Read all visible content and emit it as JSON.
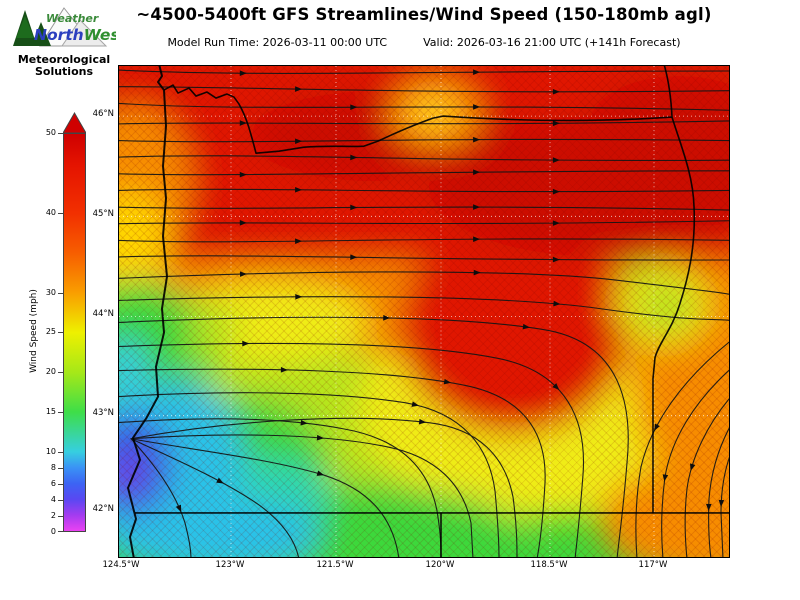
{
  "header": {
    "title": "~4500-5400ft GFS Streamlines/Wind Speed (150-180mb agl)",
    "model_run": "Model Run Time: 2026-03-11 00:00 UTC",
    "valid": "Valid: 2026-03-16 21:00 UTC  (+141h Forecast)",
    "logo": {
      "weather": "Weather",
      "north": "North",
      "west": "West",
      "tagline1": "Meteorological",
      "tagline2": "Solutions"
    }
  },
  "colorbar": {
    "label": "Wind Speed (mph)",
    "ticks": [
      "50",
      "40",
      "30",
      "25",
      "20",
      "15",
      "10",
      "8",
      "6",
      "4",
      "2",
      "0"
    ],
    "min": 0,
    "max": 50,
    "over_color": "#cf0000",
    "under_color": "#ea42f2"
  },
  "map": {
    "lat_labels": [
      "46°N",
      "45°N",
      "44°N",
      "43°N",
      "42°N"
    ],
    "lon_labels": [
      "124.5°W",
      "123°W",
      "121.5°W",
      "120°W",
      "118.5°W",
      "117°W"
    ],
    "region": "Oregon and surrounding states",
    "boundaries": [
      "Pacific coastline",
      "Columbia River / Washington border",
      "Snake River / Idaho border",
      "42N California-Nevada border",
      "120W California-Nevada line"
    ]
  },
  "chart_data": {
    "type": "heatmap",
    "title": "~4500-5400ft GFS Streamlines/Wind Speed (150-180mb agl)",
    "model_run_time": "2026-03-11 00:00 UTC",
    "valid_time": "2026-03-16 21:00 UTC",
    "forecast_hour": "+141h",
    "colorbar_label": "Wind Speed (mph)",
    "colorbar_ticks": [
      0,
      2,
      4,
      6,
      8,
      10,
      15,
      20,
      25,
      30,
      40,
      50
    ],
    "colorbar_range": [
      0,
      50
    ],
    "x_ticks": [
      "124.5°W",
      "123°W",
      "121.5°W",
      "120°W",
      "118.5°W",
      "117°W"
    ],
    "y_ticks": [
      "46°N",
      "45°N",
      "44°N",
      "43°N",
      "42°N"
    ],
    "lon_range_deg_w": [
      124.55,
      115.95
    ],
    "lat_range_deg_n": [
      41.55,
      46.5
    ],
    "grid_lons_deg_w": [
      124.5,
      123.5,
      122.5,
      121.5,
      120.5,
      119.5,
      118.5,
      117.5,
      116.5
    ],
    "grid_lats_deg_n": [
      46,
      45,
      44,
      43,
      42
    ],
    "wind_speed_mph": [
      [
        38,
        47,
        50,
        45,
        50,
        48,
        50,
        48,
        45
      ],
      [
        28,
        35,
        45,
        48,
        50,
        50,
        48,
        45,
        40
      ],
      [
        15,
        20,
        25,
        33,
        45,
        46,
        40,
        25,
        35
      ],
      [
        8,
        13,
        16,
        20,
        24,
        26,
        30,
        26,
        32
      ],
      [
        6,
        10,
        15,
        16,
        15,
        20,
        24,
        25,
        30
      ]
    ],
    "flow_notes": "Streamlines flow west-to-east across northern Oregon; divergence point at the south coast near 43N with fanning flow; anticyclonic turning with northeasterly (SW-pointing) streamlines in the southeast corner; local speed minima pockets near 121.3W/45.8N and 117.3W/44.3N"
  }
}
